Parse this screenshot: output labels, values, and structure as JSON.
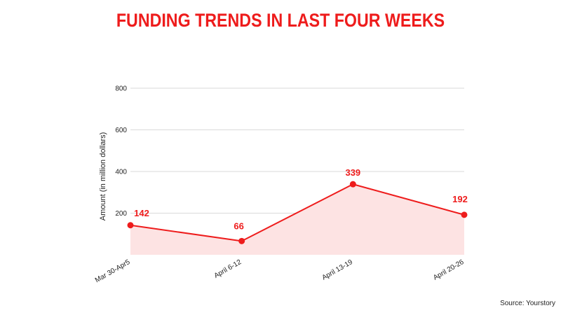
{
  "title": "FUNDING TRENDS IN LAST FOUR WEEKS",
  "source": "Source: Yourstory",
  "colors": {
    "accent": "#ee1c1c",
    "area_fill": "#fde3e3",
    "grid": "#d9d9d9",
    "text": "#222222"
  },
  "chart_data": {
    "type": "area",
    "title": "FUNDING TRENDS IN LAST FOUR WEEKS",
    "xlabel": "",
    "ylabel": "Amount (in million dollars)",
    "categories": [
      "Mar 30-Apr5",
      "April 6-12",
      "April 13-19",
      "April 20-26"
    ],
    "series": [
      {
        "values": [
          142,
          66,
          339,
          192
        ]
      }
    ],
    "ylim": [
      0,
      800
    ],
    "yticks": [
      200,
      400,
      600,
      800
    ],
    "grid": true,
    "data_labels": true
  }
}
